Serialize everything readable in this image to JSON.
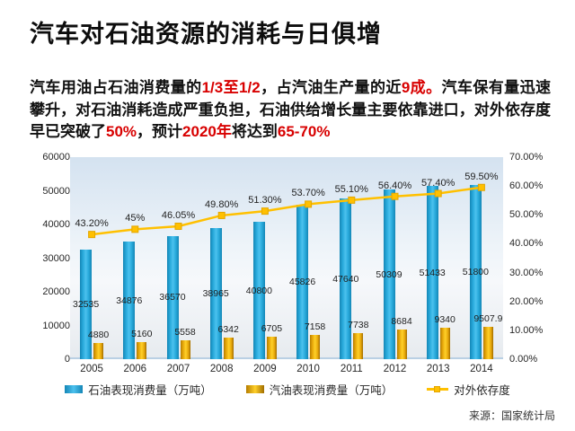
{
  "title": "汽车对石油资源的消耗与日俱增",
  "intro": {
    "highlight_color": "#d80000",
    "segments": [
      {
        "text": "汽车用油占石油消费量的",
        "highlight": false
      },
      {
        "text": "1/3至1/2",
        "highlight": true
      },
      {
        "text": "，占汽油生产量的近",
        "highlight": false
      },
      {
        "text": "9成。",
        "highlight": true
      },
      {
        "text": "汽车保有量迅速攀升，对石油消耗造成严重负担，石油供给增长量主要依靠进口，对外依存度早已突破了",
        "highlight": false
      },
      {
        "text": "50%",
        "highlight": true
      },
      {
        "text": "，预计",
        "highlight": false
      },
      {
        "text": "2020年",
        "highlight": true
      },
      {
        "text": "将达到",
        "highlight": false
      },
      {
        "text": "65-70%",
        "highlight": true
      }
    ]
  },
  "chart_data": {
    "type": "bar+line combo",
    "categories": [
      "2005",
      "2006",
      "2007",
      "2008",
      "2009",
      "2010",
      "2011",
      "2012",
      "2013",
      "2014"
    ],
    "series": [
      {
        "name": "石油表现消费量（万吨）",
        "type": "bar",
        "axis": "left",
        "color": "#1f9fd0",
        "values": [
          32535,
          34876,
          36570,
          38965,
          40800,
          45826,
          47640,
          50309,
          51433,
          51800
        ],
        "labels": [
          "32535",
          "34876",
          "36570",
          "38965",
          "40800",
          "45826",
          "47640",
          "50309",
          "51433",
          "51800"
        ]
      },
      {
        "name": "汽油表现消费量（万吨）",
        "type": "bar",
        "axis": "left",
        "color": "#efab00",
        "values": [
          4880,
          5160,
          5558,
          6342,
          6705,
          7158,
          7738,
          8684,
          9340,
          9507.9
        ],
        "labels": [
          "4880",
          "5160",
          "5558",
          "6342",
          "6705",
          "7158",
          "7738",
          "8684",
          "9340",
          "9507.9"
        ]
      },
      {
        "name": "对外依存度",
        "type": "line",
        "axis": "right",
        "color": "#ffc000",
        "values": [
          43.2,
          45,
          46.05,
          49.8,
          51.3,
          53.7,
          55.1,
          56.4,
          57.4,
          59.5
        ],
        "labels": [
          "43.20%",
          "45%",
          "46.05%",
          "49.80%",
          "51.30%",
          "53.70%",
          "55.10%",
          "56.40%",
          "57.40%",
          "59.50%"
        ]
      }
    ],
    "left_axis": {
      "min": 0,
      "max": 60000,
      "step": 10000,
      "ticks": [
        "0",
        "10000",
        "20000",
        "30000",
        "40000",
        "50000",
        "60000"
      ]
    },
    "right_axis": {
      "min": 0,
      "max": 70,
      "ticks": [
        "0.00%",
        "10.00%",
        "20.00%",
        "30.00%",
        "40.00%",
        "50.00%",
        "60.00%",
        "70.00%"
      ]
    },
    "grid": false,
    "legend_position": "bottom",
    "title": "",
    "xlabel": "",
    "ylabel": ""
  },
  "source": "来源：国家统计局"
}
